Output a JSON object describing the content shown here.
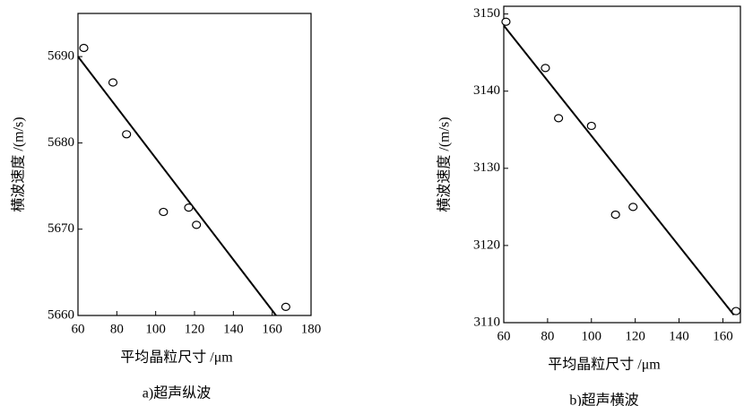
{
  "chart_data": [
    {
      "type": "scatter",
      "caption": "a)超声纵波",
      "xlabel": "平均晶粒尺寸 /μm",
      "ylabel": "横波速度 /(m/s)",
      "x": [
        63,
        78,
        85,
        104,
        117,
        121,
        167
      ],
      "values": [
        5691,
        5687,
        5681,
        5672,
        5672.5,
        5670.5,
        5661
      ],
      "fit_line": {
        "x": [
          60,
          162
        ],
        "y": [
          5690,
          5660
        ]
      },
      "xlim": [
        60,
        180
      ],
      "xticks": [
        60,
        80,
        100,
        120,
        140,
        160,
        180
      ],
      "ylim": [
        5660,
        5695
      ],
      "yticks": [
        5660,
        5670,
        5680,
        5690
      ],
      "color": "#000000"
    },
    {
      "type": "scatter",
      "caption": "b)超声横波",
      "xlabel": "平均晶粒尺寸 /μm",
      "ylabel": "横波速度 /(m/s)",
      "x": [
        61,
        79,
        85,
        100,
        111,
        119,
        166
      ],
      "values": [
        3149,
        3143,
        3136.5,
        3135.5,
        3124,
        3125,
        3111.5
      ],
      "fit_line": {
        "x": [
          60,
          165
        ],
        "y": [
          3148.5,
          3111
        ]
      },
      "xlim": [
        60,
        168
      ],
      "xticks": [
        60,
        80,
        100,
        120,
        140,
        160
      ],
      "ylim": [
        3110,
        3151
      ],
      "yticks": [
        3110,
        3120,
        3130,
        3140,
        3150
      ],
      "color": "#000000"
    }
  ]
}
